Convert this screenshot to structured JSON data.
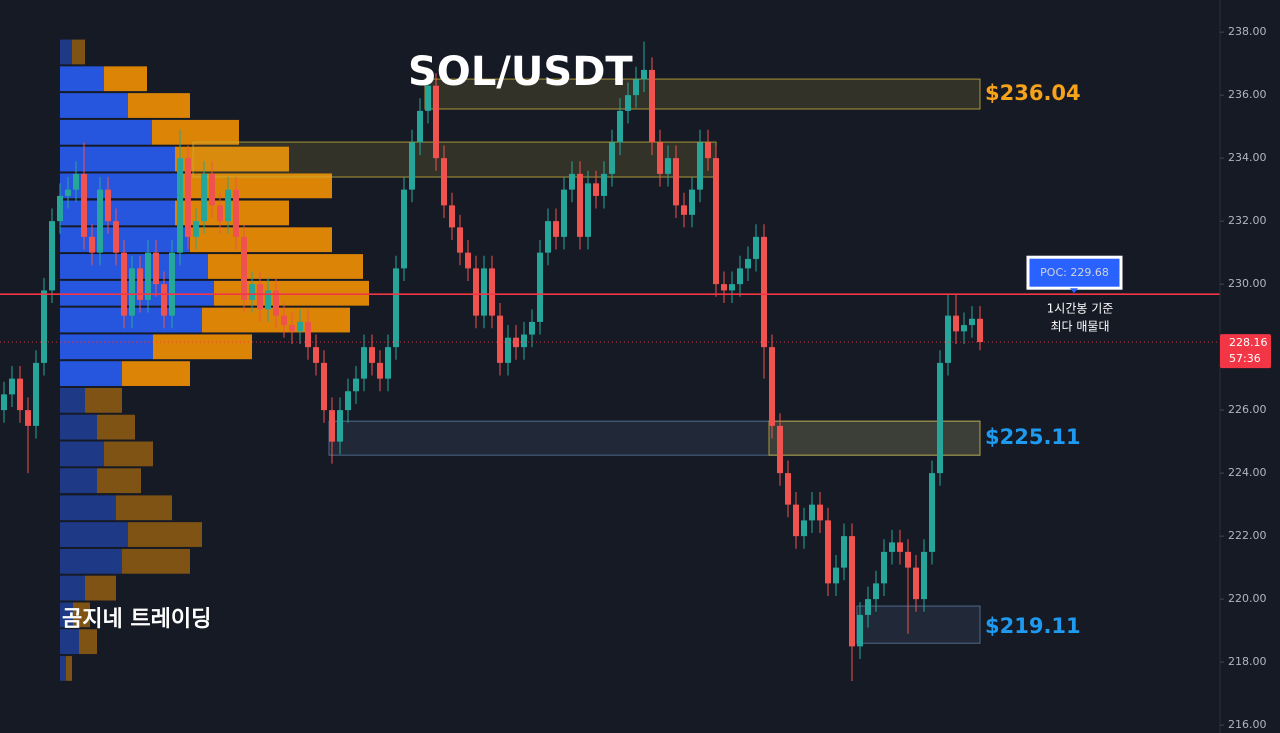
{
  "chart_data": {
    "type": "candlestick",
    "title": "SOL/USDT",
    "watermark": "곰지네 트레이딩",
    "ylim": [
      215.75,
      239.02
    ],
    "yticks": [
      {
        "value": 216,
        "label": "216.00"
      },
      {
        "value": 218,
        "label": "218.00"
      },
      {
        "value": 220,
        "label": "220.00"
      },
      {
        "value": 222,
        "label": "222.00"
      },
      {
        "value": 224,
        "label": "224.00"
      },
      {
        "value": 226,
        "label": "226.00"
      },
      {
        "value": 228,
        "label": "228.00"
      },
      {
        "value": 230,
        "label": "230.00"
      },
      {
        "value": 232,
        "label": "232.00"
      },
      {
        "value": 234,
        "label": "234.00"
      },
      {
        "value": 236,
        "label": "236.00"
      },
      {
        "value": 238,
        "label": "238.00"
      }
    ],
    "grid": false,
    "up_color": "#26a69a",
    "down_color": "#ef5350",
    "open": [
      226.0,
      226.5,
      227.0,
      226.0,
      225.5,
      227.5,
      229.8,
      232.0,
      232.8,
      233.0,
      233.5,
      231.5,
      231.0,
      233.0,
      232.0,
      231.0,
      229.0,
      230.5,
      229.5,
      231.0,
      230.0,
      229.0,
      231.0,
      234.0,
      231.5,
      232.0,
      233.5,
      232.5,
      232.0,
      233.0,
      231.5,
      229.5,
      230.0,
      229.2,
      229.8,
      229.0,
      228.7,
      228.5,
      228.8,
      228.0,
      227.5,
      226.0,
      225.0,
      226.0,
      226.6,
      227.0,
      228.0,
      227.5,
      227.0,
      228.0,
      230.5,
      233.0,
      234.5,
      235.5,
      236.3,
      234.0,
      232.5,
      231.8,
      231.0,
      230.5,
      229.0,
      230.5,
      229.0,
      227.5,
      228.3,
      228.0,
      228.4,
      228.8,
      231.0,
      232.0,
      231.5,
      233.0,
      233.5,
      231.5,
      233.2,
      232.8,
      233.5,
      234.5,
      235.5,
      236.0,
      236.5,
      236.8,
      234.5,
      233.5,
      234.0,
      232.5,
      232.2,
      233.0,
      234.5,
      234.0,
      230.0,
      229.8,
      230.0,
      230.5,
      230.8,
      231.5,
      228.0,
      225.5,
      224.0,
      223.0,
      222.0,
      222.5,
      223.0,
      222.5,
      220.5,
      221.0,
      222.0,
      218.5,
      219.5,
      220.0,
      220.5,
      221.5,
      221.8,
      221.5,
      221.0,
      220.0,
      221.5,
      224.0,
      227.5,
      229.0,
      228.5,
      228.7,
      228.9
    ],
    "high": [
      226.9,
      227.4,
      227.4,
      226.4,
      227.9,
      230.2,
      232.4,
      233.2,
      233.4,
      233.9,
      234.5,
      231.9,
      233.4,
      233.4,
      232.4,
      231.4,
      230.9,
      230.9,
      231.4,
      231.4,
      230.4,
      231.4,
      234.9,
      234.4,
      232.4,
      233.9,
      233.9,
      232.9,
      233.4,
      233.4,
      231.9,
      230.4,
      230.4,
      230.2,
      230.2,
      229.4,
      229.1,
      229.2,
      229.2,
      228.4,
      227.9,
      226.4,
      226.4,
      227.0,
      227.4,
      228.4,
      228.4,
      227.9,
      228.4,
      230.9,
      233.4,
      234.9,
      235.9,
      236.7,
      236.7,
      234.4,
      232.9,
      232.2,
      231.4,
      230.9,
      230.9,
      230.9,
      229.4,
      228.7,
      228.7,
      228.8,
      229.2,
      231.4,
      232.4,
      232.4,
      233.4,
      233.9,
      233.9,
      233.6,
      233.6,
      233.9,
      234.9,
      235.9,
      236.4,
      236.9,
      237.7,
      237.2,
      234.9,
      234.4,
      234.4,
      232.9,
      233.4,
      234.9,
      234.9,
      234.4,
      230.4,
      230.4,
      230.9,
      231.2,
      231.9,
      231.9,
      228.4,
      225.9,
      224.4,
      223.4,
      222.9,
      223.4,
      223.4,
      222.9,
      221.4,
      222.4,
      222.4,
      219.9,
      220.4,
      220.9,
      221.9,
      222.2,
      222.2,
      221.9,
      221.4,
      221.9,
      224.4,
      227.9,
      229.7,
      229.7,
      229.1,
      229.3,
      229.3
    ],
    "low": [
      225.6,
      226.1,
      225.6,
      224.0,
      225.1,
      227.1,
      229.4,
      231.6,
      232.4,
      232.6,
      231.1,
      230.6,
      230.6,
      231.6,
      230.6,
      228.6,
      228.6,
      229.1,
      229.1,
      229.6,
      228.6,
      228.6,
      230.6,
      231.1,
      231.1,
      231.6,
      232.1,
      231.6,
      231.6,
      231.1,
      229.1,
      229.1,
      228.8,
      228.8,
      228.6,
      228.3,
      228.1,
      228.1,
      227.6,
      227.1,
      225.6,
      224.3,
      224.6,
      225.6,
      226.2,
      226.6,
      227.1,
      226.6,
      226.6,
      227.6,
      230.1,
      232.6,
      234.1,
      235.1,
      233.6,
      232.1,
      231.4,
      230.6,
      230.1,
      228.6,
      228.6,
      228.6,
      227.1,
      227.1,
      227.6,
      227.6,
      228.0,
      228.4,
      230.6,
      231.1,
      231.1,
      232.6,
      231.1,
      231.1,
      232.4,
      232.4,
      233.1,
      234.1,
      235.1,
      235.6,
      236.1,
      234.1,
      233.1,
      233.1,
      232.1,
      231.8,
      231.8,
      232.6,
      233.6,
      229.6,
      229.4,
      229.4,
      229.6,
      230.1,
      230.4,
      227.0,
      225.1,
      223.6,
      222.6,
      221.6,
      221.6,
      222.1,
      222.1,
      220.1,
      220.1,
      220.6,
      217.4,
      218.1,
      219.1,
      219.6,
      220.1,
      221.1,
      221.1,
      218.9,
      219.6,
      219.6,
      221.1,
      223.6,
      227.1,
      228.1,
      228.1,
      228.3,
      227.9
    ],
    "close": [
      226.5,
      227.0,
      226.0,
      225.5,
      227.5,
      229.8,
      232.0,
      232.8,
      233.0,
      233.5,
      231.5,
      231.0,
      233.0,
      232.0,
      231.0,
      229.0,
      230.5,
      229.5,
      231.0,
      230.0,
      229.0,
      231.0,
      234.0,
      231.5,
      232.0,
      233.5,
      232.5,
      232.0,
      233.0,
      231.5,
      229.5,
      230.0,
      229.2,
      229.8,
      229.0,
      228.7,
      228.5,
      228.8,
      228.0,
      227.5,
      226.0,
      225.0,
      226.0,
      226.6,
      227.0,
      228.0,
      227.5,
      227.0,
      228.0,
      230.5,
      233.0,
      234.5,
      235.5,
      236.3,
      234.0,
      232.5,
      231.8,
      231.0,
      230.5,
      229.0,
      230.5,
      229.0,
      227.5,
      228.3,
      228.0,
      228.4,
      228.8,
      231.0,
      232.0,
      231.5,
      233.0,
      233.5,
      231.5,
      233.2,
      232.8,
      233.5,
      234.5,
      235.5,
      236.0,
      236.5,
      236.8,
      234.5,
      233.5,
      234.0,
      232.5,
      232.2,
      233.0,
      234.5,
      234.0,
      230.0,
      229.8,
      230.0,
      230.5,
      230.8,
      231.5,
      228.0,
      225.5,
      224.0,
      223.0,
      222.0,
      222.5,
      223.0,
      222.5,
      220.5,
      221.0,
      222.0,
      218.5,
      219.5,
      220.0,
      220.5,
      221.5,
      221.8,
      221.5,
      221.0,
      220.0,
      221.5,
      224.0,
      227.5,
      229.0,
      228.5,
      228.7,
      228.9,
      228.16
    ],
    "last_price": {
      "value": 228.16,
      "label": "228.16",
      "countdown": "57:36",
      "color": "#f23645"
    },
    "poc": {
      "value": 229.68,
      "label": "POC: 229.68",
      "color": "#f23645",
      "label_color": "#2962ff",
      "note": [
        "1시간봉 기준",
        "최다 매물대"
      ]
    },
    "zones": [
      {
        "low": 235.56,
        "high": 236.51,
        "start": 53,
        "end": 122,
        "color": "#c9b23a",
        "value": 236.04,
        "label": "$236.04",
        "label_color": "#f7a21b"
      },
      {
        "low": 233.4,
        "high": 234.51,
        "start": 24,
        "end": 89,
        "color": "#c9b23a"
      },
      {
        "low": 224.57,
        "high": 225.65,
        "start": 41,
        "end": 122,
        "color": "#5b7ca3",
        "value": 225.11,
        "label": "$225.11",
        "label_color": "#1e9bf0"
      },
      {
        "low": 224.57,
        "high": 225.65,
        "start": 96,
        "end": 122,
        "color": "#c9b23a"
      },
      {
        "low": 218.6,
        "high": 219.78,
        "start": 107,
        "end": 122,
        "color": "#5b7ca3",
        "value": 219.11,
        "label": "$219.11",
        "label_color": "#1e9bf0"
      }
    ],
    "volume_profile": {
      "prices": [
        237.37,
        236.52,
        235.67,
        234.82,
        233.97,
        233.12,
        232.26,
        231.41,
        230.56,
        229.71,
        228.86,
        228.01,
        227.16,
        226.31,
        225.46,
        224.61,
        223.76,
        222.9,
        222.05,
        221.2,
        220.35,
        219.5,
        218.65,
        217.8
      ],
      "buy": [
        12,
        44,
        68,
        92,
        115,
        120,
        115,
        130,
        148,
        154,
        142,
        93,
        62,
        25,
        37,
        44,
        37,
        56,
        68,
        62,
        25,
        13,
        19,
        6
      ],
      "sell": [
        13,
        43,
        62,
        87,
        114,
        152,
        114,
        142,
        155,
        155,
        148,
        99,
        68,
        37,
        38,
        49,
        44,
        56,
        74,
        68,
        31,
        17,
        18,
        6
      ],
      "value_area": [
        226.8,
        236.9
      ],
      "buy_color": "#2962ff",
      "sell_color": "#ff9800"
    }
  }
}
